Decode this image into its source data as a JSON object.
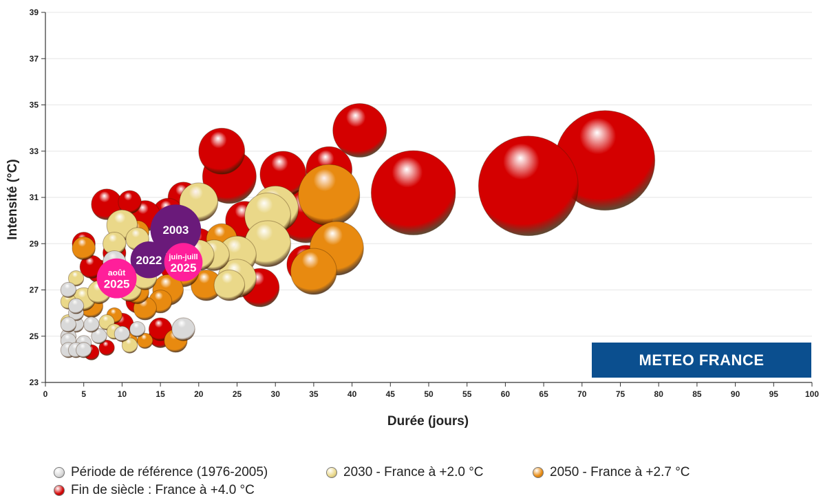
{
  "brand": "METEO FRANCE",
  "colors": {
    "reference": "#d9d9d9",
    "y2030": "#ead889",
    "y2050": "#e88a10",
    "fin_siecle": "#d40000",
    "event_purple": "#6a1a7a",
    "event_pink": "#ff1f9a",
    "brand_bg": "#0b4f8f"
  },
  "legend": [
    {
      "label": "Période de référence (1976-2005)",
      "color": "#d9d9d9"
    },
    {
      "label": "2030 - France à +2.0 °C",
      "color": "#ead889"
    },
    {
      "label": "2050 - France à +2.7 °C",
      "color": "#e88a10"
    },
    {
      "label": "Fin de siècle : France à +4.0 °C",
      "color": "#d40000"
    }
  ],
  "chart_data": {
    "type": "scatter",
    "xlabel": "Durée (jours)",
    "ylabel": "Intensité (°C)",
    "xlim": [
      0,
      100
    ],
    "ylim": [
      23,
      39
    ],
    "x_ticks": [
      0,
      5,
      10,
      15,
      20,
      25,
      30,
      35,
      40,
      45,
      50,
      55,
      60,
      65,
      70,
      75,
      80,
      85,
      90,
      95,
      100
    ],
    "y_ticks": [
      23,
      25,
      27,
      29,
      31,
      33,
      35,
      37,
      39
    ],
    "grid": "horizontal",
    "series": [
      {
        "name": "Fin de siècle : France à +4.0 °C",
        "color_key": "fin_siecle",
        "points": [
          {
            "x": 73,
            "y": 32.6,
            "s": 13
          },
          {
            "x": 63,
            "y": 31.5,
            "s": 13
          },
          {
            "x": 48,
            "y": 31.2,
            "s": 11
          },
          {
            "x": 41,
            "y": 33.9,
            "s": 7
          },
          {
            "x": 37,
            "y": 32.2,
            "s": 6
          },
          {
            "x": 31,
            "y": 32.0,
            "s": 6
          },
          {
            "x": 24,
            "y": 31.9,
            "s": 7
          },
          {
            "x": 23,
            "y": 33.0,
            "s": 6
          },
          {
            "x": 34,
            "y": 30.2,
            "s": 7
          },
          {
            "x": 26,
            "y": 30.0,
            "s": 5
          },
          {
            "x": 34,
            "y": 28.1,
            "s": 5
          },
          {
            "x": 28,
            "y": 27.1,
            "s": 5
          },
          {
            "x": 20,
            "y": 29.0,
            "s": 4
          },
          {
            "x": 18,
            "y": 31.0,
            "s": 4
          },
          {
            "x": 16,
            "y": 30.3,
            "s": 4
          },
          {
            "x": 13,
            "y": 30.2,
            "s": 4
          },
          {
            "x": 11,
            "y": 30.8,
            "s": 3
          },
          {
            "x": 8,
            "y": 30.7,
            "s": 4
          },
          {
            "x": 9,
            "y": 28.6,
            "s": 3
          },
          {
            "x": 7,
            "y": 27.8,
            "s": 3
          },
          {
            "x": 5,
            "y": 29.0,
            "s": 3
          },
          {
            "x": 6,
            "y": 28.0,
            "s": 3
          },
          {
            "x": 12,
            "y": 26.5,
            "s": 3
          },
          {
            "x": 10,
            "y": 25.5,
            "s": 3
          },
          {
            "x": 15,
            "y": 25.0,
            "s": 3
          },
          {
            "x": 15,
            "y": 25.3,
            "s": 3
          },
          {
            "x": 8,
            "y": 24.5,
            "s": 2
          },
          {
            "x": 6,
            "y": 24.3,
            "s": 2
          },
          {
            "x": 17,
            "y": 28.0,
            "s": 4
          }
        ]
      },
      {
        "name": "2050 - France à +2.7 °C",
        "color_key": "y2050",
        "points": [
          {
            "x": 37,
            "y": 31.1,
            "s": 8
          },
          {
            "x": 38,
            "y": 28.8,
            "s": 7
          },
          {
            "x": 35,
            "y": 27.8,
            "s": 6
          },
          {
            "x": 21,
            "y": 27.2,
            "s": 4
          },
          {
            "x": 18,
            "y": 27.8,
            "s": 4
          },
          {
            "x": 16,
            "y": 27.0,
            "s": 4
          },
          {
            "x": 15,
            "y": 26.5,
            "s": 3
          },
          {
            "x": 13,
            "y": 26.2,
            "s": 3
          },
          {
            "x": 12,
            "y": 26.9,
            "s": 3
          },
          {
            "x": 12,
            "y": 29.5,
            "s": 3
          },
          {
            "x": 5,
            "y": 28.8,
            "s": 3
          },
          {
            "x": 6,
            "y": 26.3,
            "s": 3
          },
          {
            "x": 10,
            "y": 25.1,
            "s": 2
          },
          {
            "x": 11,
            "y": 24.8,
            "s": 2
          },
          {
            "x": 13,
            "y": 24.8,
            "s": 2
          },
          {
            "x": 17,
            "y": 24.8,
            "s": 3
          },
          {
            "x": 9,
            "y": 25.9,
            "s": 2
          },
          {
            "x": 23,
            "y": 29.2,
            "s": 4
          }
        ]
      },
      {
        "name": "2030 - France à +2.0 °C",
        "color_key": "y2030",
        "points": [
          {
            "x": 30,
            "y": 30.5,
            "s": 6
          },
          {
            "x": 29,
            "y": 30.2,
            "s": 6
          },
          {
            "x": 29,
            "y": 29.0,
            "s": 6
          },
          {
            "x": 25,
            "y": 28.5,
            "s": 5
          },
          {
            "x": 25,
            "y": 27.5,
            "s": 5
          },
          {
            "x": 24,
            "y": 27.2,
            "s": 4
          },
          {
            "x": 20,
            "y": 30.8,
            "s": 5
          },
          {
            "x": 22,
            "y": 28.5,
            "s": 4
          },
          {
            "x": 10,
            "y": 29.8,
            "s": 4
          },
          {
            "x": 12,
            "y": 29.2,
            "s": 3
          },
          {
            "x": 9,
            "y": 29.0,
            "s": 3
          },
          {
            "x": 14,
            "y": 28.2,
            "s": 3
          },
          {
            "x": 11,
            "y": 27.0,
            "s": 3
          },
          {
            "x": 13,
            "y": 27.5,
            "s": 3
          },
          {
            "x": 4,
            "y": 27.5,
            "s": 2
          },
          {
            "x": 5,
            "y": 26.6,
            "s": 3
          },
          {
            "x": 7,
            "y": 26.9,
            "s": 3
          },
          {
            "x": 3,
            "y": 26.5,
            "s": 2
          },
          {
            "x": 8,
            "y": 25.6,
            "s": 2
          },
          {
            "x": 9,
            "y": 25.2,
            "s": 2
          },
          {
            "x": 11,
            "y": 24.6,
            "s": 2
          },
          {
            "x": 3,
            "y": 25.6,
            "s": 2
          },
          {
            "x": 20,
            "y": 28.5,
            "s": 4
          }
        ]
      },
      {
        "name": "Période de référence (1976-2005)",
        "color_key": "reference",
        "points": [
          {
            "x": 18,
            "y": 25.3,
            "s": 3
          },
          {
            "x": 12,
            "y": 25.3,
            "s": 2
          },
          {
            "x": 10,
            "y": 25.1,
            "s": 2
          },
          {
            "x": 7,
            "y": 25.0,
            "s": 2
          },
          {
            "x": 6,
            "y": 25.5,
            "s": 2
          },
          {
            "x": 5,
            "y": 24.7,
            "s": 2
          },
          {
            "x": 4,
            "y": 25.5,
            "s": 2
          },
          {
            "x": 4,
            "y": 26.0,
            "s": 2
          },
          {
            "x": 4,
            "y": 26.3,
            "s": 2
          },
          {
            "x": 3,
            "y": 27.0,
            "s": 2
          },
          {
            "x": 3,
            "y": 25.0,
            "s": 2
          },
          {
            "x": 3,
            "y": 24.8,
            "s": 2
          },
          {
            "x": 3,
            "y": 24.4,
            "s": 2
          },
          {
            "x": 4,
            "y": 24.4,
            "s": 2
          },
          {
            "x": 5,
            "y": 24.4,
            "s": 2
          },
          {
            "x": 9,
            "y": 28.2,
            "s": 3
          },
          {
            "x": 3,
            "y": 25.5,
            "s": 2
          }
        ]
      }
    ],
    "events": [
      {
        "x": 17.0,
        "y": 29.6,
        "r": 3.3,
        "line1": "2003",
        "line2": "",
        "color_key": "event_purple"
      },
      {
        "x": 13.5,
        "y": 28.3,
        "r": 2.4,
        "line1": "2022",
        "line2": "",
        "color_key": "event_purple"
      },
      {
        "x": 18.0,
        "y": 28.2,
        "r": 2.5,
        "line1": "juin-juill",
        "line2": "2025",
        "color_key": "event_pink"
      },
      {
        "x": 9.3,
        "y": 27.5,
        "r": 2.6,
        "line1": "août",
        "line2": "2025",
        "color_key": "event_pink"
      }
    ]
  }
}
